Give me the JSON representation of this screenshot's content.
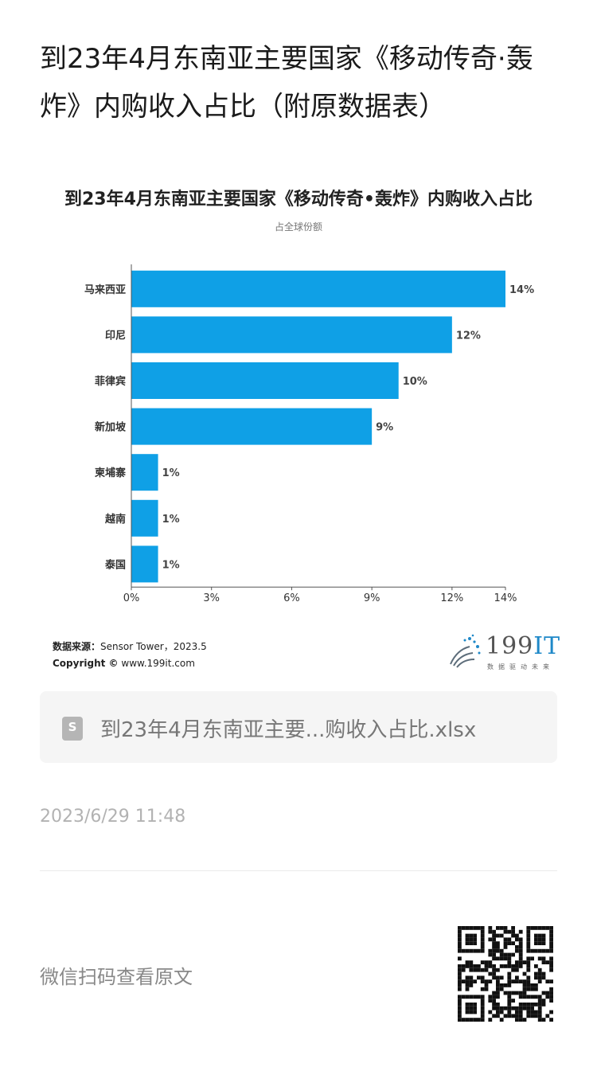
{
  "article": {
    "title": "到23年4月东南亚主要国家《移动传奇·轰炸》内购收入占比（附原数据表）"
  },
  "chart_data": {
    "type": "bar",
    "orientation": "horizontal",
    "title": "到23年4月东南亚主要国家《移动传奇•轰炸》内购收入占比",
    "subtitle": "占全球份额",
    "categories": [
      "马来西亚",
      "印尼",
      "菲律宾",
      "新加坡",
      "柬埔寨",
      "越南",
      "泰国"
    ],
    "values": [
      14,
      12,
      10,
      9,
      1,
      1,
      1
    ],
    "value_labels": [
      "14%",
      "12%",
      "10%",
      "9%",
      "1%",
      "1%",
      "1%"
    ],
    "x_ticks": [
      "0%",
      "3%",
      "6%",
      "9%",
      "12%",
      "14%"
    ],
    "x_tick_values": [
      0,
      3,
      6,
      9,
      12,
      14
    ],
    "xlim": [
      0,
      14
    ],
    "bar_color": "#0fa0e6",
    "grid": false
  },
  "footer": {
    "source_label": "数据来源：",
    "source_value": "Sensor Tower，2023.5",
    "copyright_label": "Copyright ©",
    "copyright_value": "www.199it.com",
    "logo_main": "199",
    "logo_accent": "IT",
    "logo_tagline": "数据驱动未来"
  },
  "attachment": {
    "file_icon_glyph": "S",
    "file_name": "到23年4月东南亚主要...购收入占比.xlsx"
  },
  "meta": {
    "timestamp": "2023/6/29 11:48",
    "scan_prompt": "微信扫码查看原文"
  },
  "colors": {
    "accent": "#0fa0e6",
    "muted_text": "#b2b2b2"
  }
}
